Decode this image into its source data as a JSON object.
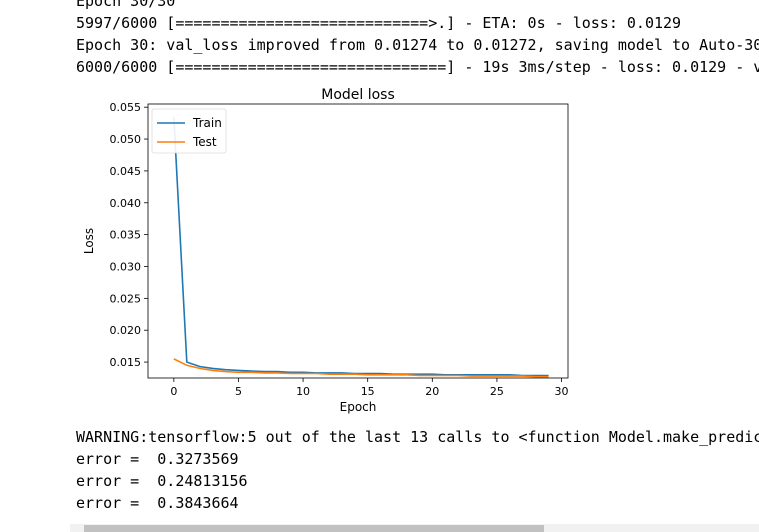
{
  "output": {
    "lines_top": [
      "Epoch 30/30",
      "5997/6000 [============================>.] - ETA: 0s - loss: 0.0129",
      "Epoch 30: val_loss improved from 0.01274 to 0.01272, saving model to Auto-30",
      "6000/6000 [==============================] - 19s 3ms/step - loss: 0.0129 - v"
    ],
    "lines_bottom": [
      "WARNING:tensorflow:5 out of the last 13 calls to <function Model.make_predic",
      "error =  0.3273569",
      "error =  0.24813156",
      "error =  0.3843664"
    ]
  },
  "chart_data": {
    "type": "line",
    "title": "Model loss",
    "xlabel": "Epoch",
    "ylabel": "Loss",
    "xlim": [
      -2,
      30.5
    ],
    "ylim": [
      0.0125,
      0.0555
    ],
    "xticks": [
      0,
      5,
      10,
      15,
      20,
      25,
      30
    ],
    "yticks": [
      0.015,
      0.02,
      0.025,
      0.03,
      0.035,
      0.04,
      0.045,
      0.05,
      0.055
    ],
    "legend_position": "upper-left",
    "grid": false,
    "series": [
      {
        "name": "Train",
        "color": "#1f77b4",
        "x": [
          0,
          1,
          2,
          3,
          4,
          5,
          6,
          7,
          8,
          9,
          10,
          11,
          12,
          13,
          14,
          15,
          16,
          17,
          18,
          19,
          20,
          21,
          22,
          23,
          24,
          25,
          26,
          27,
          28,
          29
        ],
        "values": [
          0.0535,
          0.015,
          0.0143,
          0.014,
          0.0138,
          0.0137,
          0.0136,
          0.0135,
          0.0135,
          0.0134,
          0.0134,
          0.0133,
          0.0133,
          0.0133,
          0.0132,
          0.0132,
          0.0132,
          0.0131,
          0.0131,
          0.0131,
          0.0131,
          0.013,
          0.013,
          0.013,
          0.013,
          0.013,
          0.013,
          0.0129,
          0.0129,
          0.0129
        ]
      },
      {
        "name": "Test",
        "color": "#ff7f0e",
        "x": [
          0,
          1,
          2,
          3,
          4,
          5,
          6,
          7,
          8,
          9,
          10,
          11,
          12,
          13,
          14,
          15,
          16,
          17,
          18,
          19,
          20,
          21,
          22,
          23,
          24,
          25,
          26,
          27,
          28,
          29
        ],
        "values": [
          0.0155,
          0.0145,
          0.014,
          0.0137,
          0.0135,
          0.0134,
          0.0134,
          0.0133,
          0.0133,
          0.0132,
          0.0132,
          0.0132,
          0.0131,
          0.0131,
          0.0131,
          0.013,
          0.013,
          0.013,
          0.013,
          0.0129,
          0.0129,
          0.0129,
          0.0129,
          0.0128,
          0.0128,
          0.0128,
          0.0128,
          0.0128,
          0.0127,
          0.0127
        ]
      }
    ]
  }
}
